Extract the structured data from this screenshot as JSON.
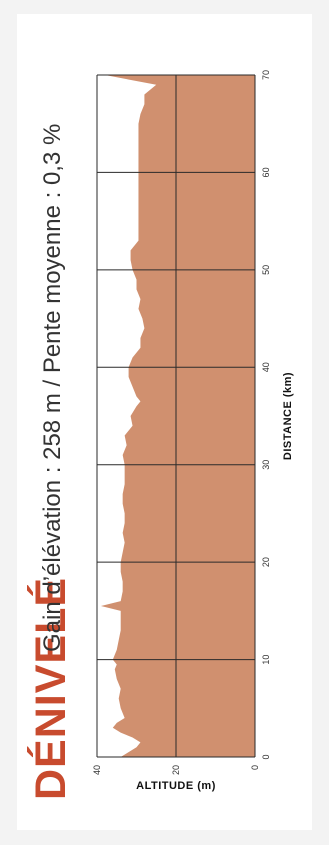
{
  "title": "DÉNIVELÉ",
  "subtitle": "Gain d’élévation : 258 m / Pente moyenne : 0,3 %",
  "chart_data": {
    "type": "area",
    "xlabel": "DISTANCE (km)",
    "ylabel": "ALTITUDE (m)",
    "xlim": [
      0,
      70
    ],
    "ylim": [
      0,
      40
    ],
    "xticks": [
      0,
      10,
      20,
      30,
      40,
      50,
      60,
      70
    ],
    "yticks": [
      0,
      20,
      40
    ],
    "grid": true,
    "colors": {
      "fill": "#d0906f",
      "grid": "#2a2a2a",
      "title": "#c84b2e"
    },
    "series": [
      {
        "x": [
          0,
          0.5,
          1,
          1.5,
          2,
          2.5,
          3,
          3.5,
          4,
          5,
          6,
          7,
          8,
          9,
          9.5,
          10,
          11,
          12,
          13,
          14,
          15,
          15.5,
          16,
          17,
          18,
          19,
          20,
          21,
          22,
          23,
          24,
          25,
          26,
          27,
          28,
          29,
          30,
          31,
          32,
          33,
          34,
          35,
          36,
          36.5,
          37,
          38,
          39,
          40,
          41,
          42,
          43,
          44,
          45,
          46,
          47,
          48,
          49,
          50,
          51,
          52,
          53,
          54,
          55,
          56,
          57,
          58,
          59,
          60,
          61,
          62,
          63,
          64,
          65,
          66,
          67,
          68,
          69,
          70
        ],
        "y": [
          34,
          32,
          30,
          29,
          31,
          34,
          36,
          35,
          33,
          34,
          34.5,
          34,
          35,
          35.5,
          35,
          36,
          35,
          34.5,
          34,
          34,
          34,
          39,
          34,
          33.5,
          33.5,
          34,
          34,
          33.5,
          33,
          33.5,
          33,
          33,
          33.5,
          33.5,
          33,
          33,
          33,
          33.5,
          32.5,
          33,
          31,
          31.5,
          30,
          29,
          30,
          31,
          32,
          32,
          31,
          29,
          29,
          28,
          28.5,
          29.5,
          29,
          30,
          30,
          31,
          31.5,
          31.5,
          29.5,
          29.5,
          29.5,
          29.5,
          29.5,
          29.5,
          29.5,
          29.5,
          29.5,
          29.5,
          29.5,
          29.5,
          29.5,
          29,
          28,
          28,
          25,
          38
        ]
      }
    ]
  }
}
